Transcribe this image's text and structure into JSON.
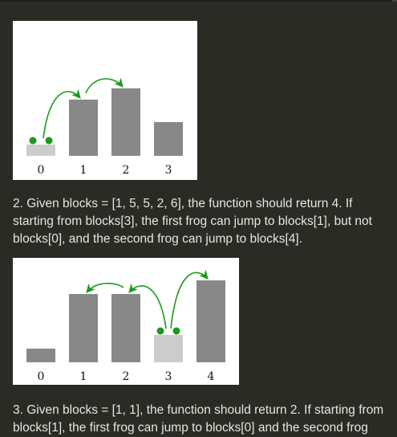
{
  "examples": [
    {
      "figure": {
        "blocks": [
          1,
          5,
          6,
          3
        ],
        "tick_labels": [
          "0",
          "1",
          "2",
          "3"
        ],
        "start_index": 0,
        "jumps": [
          [
            0,
            1
          ],
          [
            1,
            2
          ]
        ],
        "colors": {
          "start": "#cccccc",
          "block": "#888888",
          "frog": "#1a9a1a"
        }
      }
    },
    {
      "text_lines": [
        "2. Given blocks = [1, 5, 5, 2, 6], the function should return 4. If",
        "starting from blocks[3], the first frog can jump to blocks[1], but not",
        "blocks[0], and the second frog can jump to blocks[4]."
      ],
      "figure": {
        "blocks": [
          1,
          5,
          5,
          2,
          6
        ],
        "tick_labels": [
          "0",
          "1",
          "2",
          "3",
          "4"
        ],
        "start_index": 3,
        "jumps": [
          [
            3,
            2
          ],
          [
            2,
            1
          ],
          [
            3,
            4
          ]
        ],
        "colors": {
          "start": "#cccccc",
          "block": "#888888",
          "frog": "#1a9a1a"
        }
      }
    },
    {
      "text_lines": [
        "3. Given blocks = [1, 1], the function should return 2. If starting from",
        "blocks[1], the first frog can jump to blocks[0] and the second frog"
      ]
    }
  ]
}
